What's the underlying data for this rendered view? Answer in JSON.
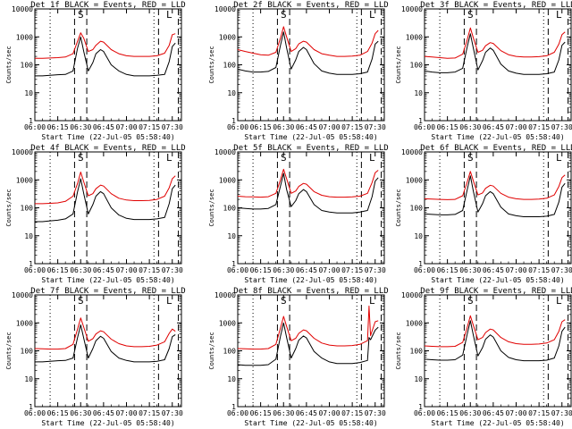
{
  "figure": {
    "common": {
      "xlabel": "Start Time (22-Jul-05 05:58:40)",
      "ylabel": "Counts/sec",
      "x_tick_labels": [
        "06:00",
        "06:15",
        "06:30",
        "06:45",
        "07:00",
        "07:15",
        "07:30"
      ],
      "y_tick_labels": [
        "1",
        "10",
        "100",
        "1000",
        "10000"
      ],
      "interval_markers": [
        {
          "label": "S",
          "time": "06:30",
          "dashed_lines": [
            "06:26",
            "06:34"
          ]
        },
        {
          "label": "L",
          "time": "07:28",
          "dashed_lines": [
            "07:21",
            "07:34"
          ]
        }
      ],
      "dotted_lines": [
        "06:10",
        "07:18"
      ],
      "colors": {
        "events": "#000000",
        "lld": "#e00000",
        "axes": "#000000",
        "background": "#ffffff"
      }
    }
  },
  "chart_data": [
    {
      "type": "line",
      "title": "Det 1f BLACK = Events, RED = LLD",
      "x": [
        "06:00",
        "06:05",
        "06:10",
        "06:15",
        "06:20",
        "06:25",
        "06:28",
        "06:30",
        "06:32",
        "06:35",
        "06:38",
        "06:40",
        "06:43",
        "06:45",
        "06:50",
        "06:55",
        "07:00",
        "07:05",
        "07:10",
        "07:15",
        "07:20",
        "07:25",
        "07:28",
        "07:30",
        "07:32"
      ],
      "series": [
        {
          "name": "Events",
          "values": [
            40,
            40,
            42,
            44,
            45,
            60,
            400,
            1000,
            300,
            60,
            120,
            250,
            350,
            300,
            100,
            60,
            45,
            40,
            40,
            40,
            42,
            45,
            130,
            450,
            600
          ]
        },
        {
          "name": "LLD",
          "values": [
            170,
            170,
            175,
            180,
            190,
            250,
            700,
            1400,
            900,
            300,
            350,
            500,
            700,
            650,
            350,
            250,
            210,
            200,
            200,
            200,
            210,
            260,
            500,
            1200,
            1300
          ]
        }
      ],
      "xlabel": "Start Time (22-Jul-05 05:58:40)",
      "ylabel": "Counts/sec",
      "ylim": [
        1,
        10000
      ],
      "yscale": "log"
    },
    {
      "type": "line",
      "title": "Det 2f BLACK = Events, RED = LLD",
      "x": [
        "06:00",
        "06:05",
        "06:10",
        "06:15",
        "06:20",
        "06:25",
        "06:28",
        "06:30",
        "06:32",
        "06:35",
        "06:38",
        "06:40",
        "06:43",
        "06:45",
        "06:50",
        "06:55",
        "07:00",
        "07:05",
        "07:10",
        "07:15",
        "07:20",
        "07:25",
        "07:28",
        "07:30",
        "07:32"
      ],
      "series": [
        {
          "name": "Events",
          "values": [
            70,
            60,
            55,
            55,
            58,
            80,
            500,
            1500,
            400,
            70,
            150,
            300,
            420,
            350,
            110,
            60,
            50,
            45,
            45,
            45,
            48,
            55,
            160,
            550,
            700
          ]
        },
        {
          "name": "LLD",
          "values": [
            350,
            300,
            260,
            230,
            220,
            280,
            900,
            2300,
            1000,
            300,
            380,
            560,
            700,
            650,
            350,
            250,
            220,
            200,
            200,
            205,
            220,
            300,
            600,
            1300,
            1700
          ]
        }
      ],
      "xlabel": "Start Time (22-Jul-05 05:58:40)",
      "ylabel": "Counts/sec",
      "ylim": [
        1,
        10000
      ],
      "yscale": "log"
    },
    {
      "type": "line",
      "title": "Det 3f BLACK = Events, RED = LLD",
      "x": [
        "06:00",
        "06:05",
        "06:10",
        "06:15",
        "06:20",
        "06:25",
        "06:28",
        "06:30",
        "06:32",
        "06:35",
        "06:38",
        "06:40",
        "06:43",
        "06:45",
        "06:50",
        "06:55",
        "07:00",
        "07:05",
        "07:10",
        "07:15",
        "07:20",
        "07:25",
        "07:28",
        "07:30",
        "07:32"
      ],
      "series": [
        {
          "name": "Events",
          "values": [
            60,
            55,
            52,
            52,
            55,
            75,
            450,
            1300,
            380,
            65,
            140,
            280,
            400,
            330,
            105,
            60,
            50,
            45,
            45,
            45,
            48,
            55,
            150,
            500,
            650
          ]
        },
        {
          "name": "LLD",
          "values": [
            200,
            190,
            180,
            170,
            175,
            240,
            800,
            2100,
            900,
            280,
            330,
            480,
            620,
            580,
            320,
            230,
            200,
            190,
            190,
            195,
            210,
            280,
            550,
            1200,
            1500
          ]
        }
      ],
      "xlabel": "Start Time (22-Jul-05 05:58:40)",
      "ylabel": "Counts/sec",
      "ylim": [
        1,
        10000
      ],
      "yscale": "log"
    },
    {
      "type": "line",
      "title": "Det 4f BLACK = Events, RED = LLD",
      "x": [
        "06:00",
        "06:05",
        "06:10",
        "06:15",
        "06:20",
        "06:25",
        "06:28",
        "06:30",
        "06:32",
        "06:35",
        "06:38",
        "06:40",
        "06:43",
        "06:45",
        "06:50",
        "06:55",
        "07:00",
        "07:05",
        "07:10",
        "07:15",
        "07:20",
        "07:25",
        "07:28",
        "07:30",
        "07:32"
      ],
      "series": [
        {
          "name": "Events",
          "values": [
            32,
            32,
            34,
            36,
            40,
            60,
            380,
            1100,
            320,
            60,
            130,
            260,
            380,
            320,
            100,
            55,
            42,
            38,
            38,
            38,
            40,
            45,
            140,
            480,
            650
          ]
        },
        {
          "name": "LLD",
          "values": [
            140,
            140,
            145,
            150,
            170,
            260,
            750,
            1900,
            850,
            270,
            320,
            480,
            650,
            600,
            320,
            220,
            190,
            180,
            180,
            185,
            200,
            260,
            520,
            1100,
            1400
          ]
        }
      ],
      "xlabel": "Start Time (22-Jul-05 05:58:40)",
      "ylabel": "Counts/sec",
      "ylim": [
        1,
        10000
      ],
      "yscale": "log"
    },
    {
      "type": "line",
      "title": "Det 5f BLACK = Events, RED = LLD",
      "x": [
        "06:00",
        "06:05",
        "06:10",
        "06:15",
        "06:20",
        "06:25",
        "06:28",
        "06:30",
        "06:32",
        "06:35",
        "06:38",
        "06:40",
        "06:43",
        "06:45",
        "06:50",
        "06:55",
        "07:00",
        "07:05",
        "07:10",
        "07:15",
        "07:20",
        "07:25",
        "07:28",
        "07:30",
        "07:32"
      ],
      "series": [
        {
          "name": "Events",
          "values": [
            100,
            95,
            90,
            90,
            95,
            130,
            600,
            1700,
            450,
            110,
            180,
            320,
            450,
            380,
            130,
            80,
            70,
            65,
            65,
            65,
            70,
            80,
            250,
            900,
            1200
          ]
        },
        {
          "name": "LLD",
          "values": [
            260,
            250,
            245,
            240,
            250,
            330,
            1000,
            2400,
            1100,
            330,
            400,
            580,
            750,
            700,
            380,
            280,
            250,
            240,
            240,
            245,
            260,
            330,
            800,
            1800,
            2200
          ]
        }
      ],
      "xlabel": "Start Time (22-Jul-05 05:58:40)",
      "ylabel": "Counts/sec",
      "ylim": [
        1,
        10000
      ],
      "yscale": "log"
    },
    {
      "type": "line",
      "title": "Det 6f BLACK = Events, RED = LLD",
      "x": [
        "06:00",
        "06:05",
        "06:10",
        "06:15",
        "06:20",
        "06:25",
        "06:28",
        "06:30",
        "06:32",
        "06:35",
        "06:38",
        "06:40",
        "06:43",
        "06:45",
        "06:50",
        "06:55",
        "07:00",
        "07:05",
        "07:10",
        "07:15",
        "07:20",
        "07:25",
        "07:28",
        "07:30",
        "07:32"
      ],
      "series": [
        {
          "name": "Events",
          "values": [
            60,
            58,
            56,
            56,
            58,
            80,
            450,
            1400,
            380,
            70,
            140,
            270,
            380,
            320,
            105,
            60,
            52,
            48,
            48,
            48,
            50,
            58,
            160,
            550,
            750
          ]
        },
        {
          "name": "LLD",
          "values": [
            210,
            205,
            200,
            195,
            200,
            270,
            850,
            2000,
            900,
            290,
            340,
            500,
            640,
            600,
            330,
            240,
            210,
            200,
            200,
            205,
            220,
            290,
            580,
            1200,
            1500
          ]
        }
      ],
      "xlabel": "Start Time (22-Jul-05 05:58:40)",
      "ylabel": "Counts/sec",
      "ylim": [
        1,
        10000
      ],
      "yscale": "log"
    },
    {
      "type": "line",
      "title": "Det 7f BLACK = Events, RED = LLD",
      "x": [
        "06:00",
        "06:05",
        "06:10",
        "06:15",
        "06:20",
        "06:25",
        "06:28",
        "06:30",
        "06:32",
        "06:35",
        "06:38",
        "06:40",
        "06:43",
        "06:45",
        "06:50",
        "06:55",
        "07:00",
        "07:05",
        "07:10",
        "07:15",
        "07:20",
        "07:25",
        "07:28",
        "07:30",
        "07:32"
      ],
      "series": [
        {
          "name": "Events",
          "values": [
            40,
            40,
            42,
            44,
            45,
            55,
            300,
            850,
            280,
            55,
            120,
            230,
            330,
            280,
            95,
            55,
            45,
            40,
            40,
            40,
            42,
            48,
            120,
            320,
            380
          ]
        },
        {
          "name": "LLD",
          "values": [
            120,
            118,
            115,
            115,
            120,
            170,
            600,
            1500,
            700,
            220,
            270,
            400,
            520,
            480,
            260,
            180,
            150,
            140,
            140,
            145,
            160,
            210,
            420,
            600,
            500
          ]
        }
      ],
      "xlabel": "Start Time (22-Jul-05 05:58:40)",
      "ylabel": "Counts/sec",
      "ylim": [
        1,
        10000
      ],
      "yscale": "log"
    },
    {
      "type": "line",
      "title": "Det 8f BLACK = Events, RED = LLD",
      "x": [
        "06:00",
        "06:05",
        "06:10",
        "06:15",
        "06:20",
        "06:25",
        "06:28",
        "06:30",
        "06:32",
        "06:35",
        "06:38",
        "06:40",
        "06:43",
        "06:45",
        "06:50",
        "06:55",
        "07:00",
        "07:05",
        "07:10",
        "07:15",
        "07:20",
        "07:25",
        "07:26",
        "07:27",
        "07:30",
        "07:32"
      ],
      "series": [
        {
          "name": "Events",
          "values": [
            32,
            30,
            30,
            30,
            32,
            50,
            330,
            1000,
            300,
            55,
            120,
            240,
            340,
            290,
            95,
            55,
            40,
            35,
            35,
            35,
            38,
            45,
            300,
            250,
            550,
            700
          ]
        },
        {
          "name": "LLD",
          "values": [
            120,
            118,
            115,
            115,
            120,
            170,
            650,
            1700,
            750,
            230,
            280,
            420,
            560,
            520,
            280,
            190,
            160,
            150,
            150,
            155,
            170,
            230,
            4000,
            350,
            1100,
            1200
          ]
        }
      ],
      "xlabel": "Start Time (22-Jul-05 05:58:40)",
      "ylabel": "Counts/sec",
      "ylim": [
        1,
        10000
      ],
      "yscale": "log"
    },
    {
      "type": "line",
      "title": "Det 9f BLACK = Events, RED = LLD",
      "x": [
        "06:00",
        "06:05",
        "06:10",
        "06:15",
        "06:20",
        "06:25",
        "06:28",
        "06:30",
        "06:32",
        "06:35",
        "06:38",
        "06:40",
        "06:43",
        "06:45",
        "06:50",
        "06:55",
        "07:00",
        "07:05",
        "07:10",
        "07:15",
        "07:20",
        "07:25",
        "07:28",
        "07:30",
        "07:32"
      ],
      "series": [
        {
          "name": "Events",
          "values": [
            50,
            48,
            46,
            46,
            48,
            70,
            400,
            1200,
            350,
            65,
            130,
            260,
            370,
            310,
            100,
            58,
            48,
            44,
            44,
            44,
            46,
            55,
            150,
            500,
            700
          ]
        },
        {
          "name": "LLD",
          "values": [
            150,
            145,
            140,
            140,
            145,
            200,
            700,
            1800,
            800,
            250,
            300,
            450,
            600,
            560,
            300,
            210,
            180,
            170,
            170,
            175,
            190,
            250,
            500,
            1100,
            1300
          ]
        }
      ],
      "xlabel": "Start Time (22-Jul-05 05:58:40)",
      "ylabel": "Counts/sec",
      "ylim": [
        1,
        10000
      ],
      "yscale": "log"
    }
  ]
}
